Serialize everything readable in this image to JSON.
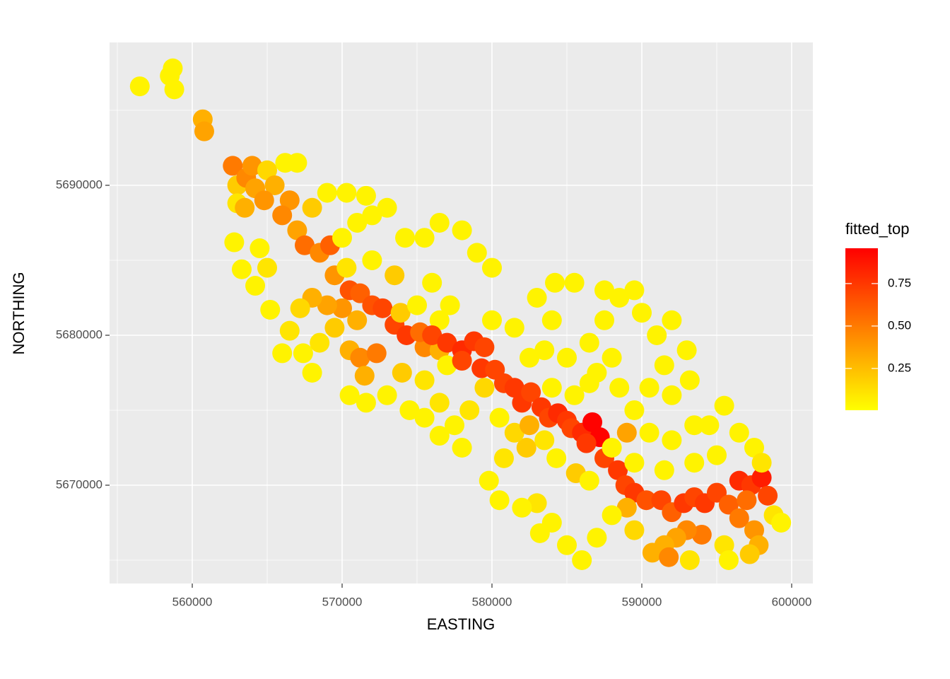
{
  "chart_data": {
    "type": "scatter",
    "x_label": "EASTING",
    "y_label": "NORTHING",
    "legend_title": "fitted_top",
    "xlim": [
      554481,
      601415
    ],
    "ylim": [
      5663443,
      5699528
    ],
    "xticks": [
      560000,
      570000,
      580000,
      590000,
      600000
    ],
    "yticks": [
      5670000,
      5680000,
      5690000
    ],
    "xminor": [
      555000,
      565000,
      575000,
      585000,
      595000
    ],
    "yminor": [
      5665000,
      5675000,
      5685000,
      5695000
    ],
    "colorlim": [
      0.004,
      0.958
    ],
    "low_color": "#FFFF00",
    "high_color": "#FF0000",
    "colorticks": [
      0.25,
      {
        "value": 0.5,
        "label": "0.50"
      },
      0.75
    ],
    "x": [
      556500,
      558500,
      558700,
      558800,
      560700,
      560800,
      562700,
      563000,
      563600,
      564000,
      564200,
      565000,
      565500,
      564800,
      563000,
      563500,
      562800,
      563300,
      564500,
      565000,
      564200,
      565200,
      566200,
      567000,
      566500,
      566000,
      567000,
      568000,
      569000,
      570300,
      571600,
      567500,
      568500,
      569200,
      569500,
      570300,
      570000,
      571000,
      572000,
      573000,
      574200,
      575500,
      576500,
      578000,
      579000,
      580000,
      570500,
      571200,
      572000,
      572700,
      573500,
      574300,
      573900,
      571000,
      570000,
      569000,
      568000,
      567200,
      566500,
      567400,
      568500,
      569500,
      570500,
      571200,
      572300,
      571500,
      570500,
      571600,
      573000,
      574000,
      574500,
      575500,
      575500,
      576500,
      577000,
      576500,
      575000,
      576000,
      577200,
      575200,
      576000,
      577000,
      578000,
      578800,
      579500,
      578000,
      579300,
      580200,
      580800,
      581500,
      582000,
      582600,
      583300,
      583800,
      584400,
      585000,
      585300,
      586000,
      586700,
      587200,
      586300,
      587500,
      588400,
      588900,
      589500,
      590300,
      591300,
      592000,
      592800,
      593500,
      594200,
      595000,
      595800,
      596500,
      597300,
      598000,
      598400,
      597000,
      596500,
      597500,
      598800,
      599300,
      597800,
      597200,
      595500,
      594000,
      593000,
      592300,
      591500,
      590700,
      591800,
      593200,
      595800,
      589500,
      589000,
      588000,
      587000,
      586000,
      585000,
      584000,
      583200,
      583000,
      582000,
      580500,
      579800,
      580800,
      582300,
      583500,
      584300,
      585600,
      586500,
      578000,
      577500,
      576500,
      575500,
      576500,
      578500,
      579500,
      580500,
      581500,
      582500,
      584000,
      585500,
      586500,
      585000,
      586500,
      587500,
      588500,
      589500,
      590000,
      591000,
      592000,
      591500,
      593000,
      593200,
      592000,
      590500,
      589500,
      588500,
      588000,
      587000,
      590500,
      592000,
      593500,
      594500,
      595500,
      596500,
      597500,
      598000,
      595000,
      593500,
      591500,
      589500,
      580000,
      581500,
      583000,
      584200,
      585500,
      582500,
      583500,
      584000,
      587500,
      588000,
      589000,
      573500,
      572000,
      568000,
      566000
    ],
    "values": [
      5696600,
      5697300,
      5697800,
      5696400,
      5694400,
      5693600,
      5691300,
      5690000,
      5690500,
      5691300,
      5689800,
      5691000,
      5690000,
      5689000,
      5688800,
      5688500,
      5686200,
      5684400,
      5685800,
      5684500,
      5683300,
      5681700,
      5691500,
      5691500,
      5689000,
      5688000,
      5687000,
      5688500,
      5689500,
      5689500,
      5689300,
      5686000,
      5685500,
      5686000,
      5684000,
      5684500,
      5686500,
      5687500,
      5688000,
      5688500,
      5686500,
      5686500,
      5687500,
      5687000,
      5685500,
      5684500,
      5683000,
      5682800,
      5682000,
      5681800,
      5680700,
      5680000,
      5681500,
      5681000,
      5681800,
      5682000,
      5682500,
      5681800,
      5680300,
      5678800,
      5679500,
      5680500,
      5679000,
      5678500,
      5678800,
      5677300,
      5676000,
      5675500,
      5676000,
      5677500,
      5675000,
      5677000,
      5679200,
      5679000,
      5678000,
      5681000,
      5682000,
      5683500,
      5682000,
      5680200,
      5680000,
      5679500,
      5679000,
      5679600,
      5679200,
      5678300,
      5677800,
      5677700,
      5676800,
      5676500,
      5675500,
      5676200,
      5675200,
      5674500,
      5674800,
      5674300,
      5673800,
      5673500,
      5674200,
      5673200,
      5672800,
      5671800,
      5671000,
      5670000,
      5669500,
      5669000,
      5669000,
      5668200,
      5668800,
      5669200,
      5668800,
      5669500,
      5668700,
      5670300,
      5670000,
      5670500,
      5669300,
      5669000,
      5667800,
      5667000,
      5668000,
      5667500,
      5666000,
      5665400,
      5666000,
      5666700,
      5667000,
      5666500,
      5666000,
      5665500,
      5665200,
      5665000,
      5665000,
      5667000,
      5668500,
      5668000,
      5666500,
      5665000,
      5666000,
      5667500,
      5666800,
      5668800,
      5668500,
      5669000,
      5670300,
      5671800,
      5672500,
      5673000,
      5671800,
      5670800,
      5670300,
      5672500,
      5674000,
      5673300,
      5674500,
      5675500,
      5675000,
      5676500,
      5674500,
      5673500,
      5674000,
      5676500,
      5676000,
      5676800,
      5678500,
      5679500,
      5681000,
      5682500,
      5683000,
      5681500,
      5680000,
      5681000,
      5678000,
      5679000,
      5677000,
      5676000,
      5676500,
      5675000,
      5676500,
      5678500,
      5677500,
      5673500,
      5673000,
      5674000,
      5674000,
      5675300,
      5673500,
      5672500,
      5671500,
      5672000,
      5671500,
      5671000,
      5671500,
      5681000,
      5680500,
      5682500,
      5683500,
      5683500,
      5678500,
      5679000,
      5681000,
      5683000,
      5672500,
      5673500,
      5684000,
      5685000,
      5677500,
      5678800
    ],
    "color_values": [
      0.05,
      0.05,
      0.05,
      0.05,
      0.3,
      0.35,
      0.5,
      0.2,
      0.45,
      0.4,
      0.35,
      0.15,
      0.3,
      0.4,
      0.1,
      0.3,
      0.05,
      0.05,
      0.05,
      0.1,
      0.05,
      0.05,
      0.05,
      0.05,
      0.4,
      0.45,
      0.35,
      0.2,
      0.05,
      0.05,
      0.05,
      0.55,
      0.45,
      0.6,
      0.4,
      0.1,
      0.05,
      0.05,
      0.05,
      0.05,
      0.05,
      0.05,
      0.05,
      0.05,
      0.05,
      0.05,
      0.65,
      0.6,
      0.65,
      0.7,
      0.7,
      0.75,
      0.2,
      0.3,
      0.4,
      0.35,
      0.3,
      0.15,
      0.1,
      0.05,
      0.1,
      0.2,
      0.3,
      0.45,
      0.5,
      0.3,
      0.05,
      0.05,
      0.05,
      0.2,
      0.05,
      0.1,
      0.45,
      0.3,
      0.05,
      0.05,
      0.05,
      0.05,
      0.05,
      0.55,
      0.7,
      0.75,
      0.8,
      0.75,
      0.7,
      0.7,
      0.75,
      0.7,
      0.7,
      0.75,
      0.75,
      0.7,
      0.75,
      0.7,
      0.8,
      0.75,
      0.7,
      0.8,
      0.95,
      0.95,
      0.75,
      0.7,
      0.75,
      0.7,
      0.75,
      0.65,
      0.7,
      0.6,
      0.75,
      0.7,
      0.75,
      0.7,
      0.6,
      0.8,
      0.75,
      0.85,
      0.7,
      0.55,
      0.5,
      0.4,
      0.1,
      0.05,
      0.3,
      0.2,
      0.1,
      0.5,
      0.45,
      0.35,
      0.3,
      0.3,
      0.45,
      0.1,
      0.05,
      0.15,
      0.3,
      0.05,
      0.05,
      0.05,
      0.05,
      0.05,
      0.05,
      0.1,
      0.05,
      0.05,
      0.05,
      0.1,
      0.2,
      0.1,
      0.05,
      0.2,
      0.05,
      0.05,
      0.05,
      0.05,
      0.05,
      0.1,
      0.1,
      0.15,
      0.05,
      0.15,
      0.3,
      0.05,
      0.05,
      0.05,
      0.05,
      0.05,
      0.05,
      0.05,
      0.05,
      0.05,
      0.05,
      0.05,
      0.05,
      0.05,
      0.05,
      0.05,
      0.05,
      0.05,
      0.05,
      0.05,
      0.05,
      0.05,
      0.05,
      0.05,
      0.05,
      0.05,
      0.05,
      0.05,
      0.1,
      0.05,
      0.05,
      0.05,
      0.05,
      0.05,
      0.05,
      0.05,
      0.05,
      0.05,
      0.05,
      0.05,
      0.05,
      0.05,
      0.05,
      0.35,
      0.2,
      0.05,
      0.05,
      0.05,
      0.05
    ]
  }
}
